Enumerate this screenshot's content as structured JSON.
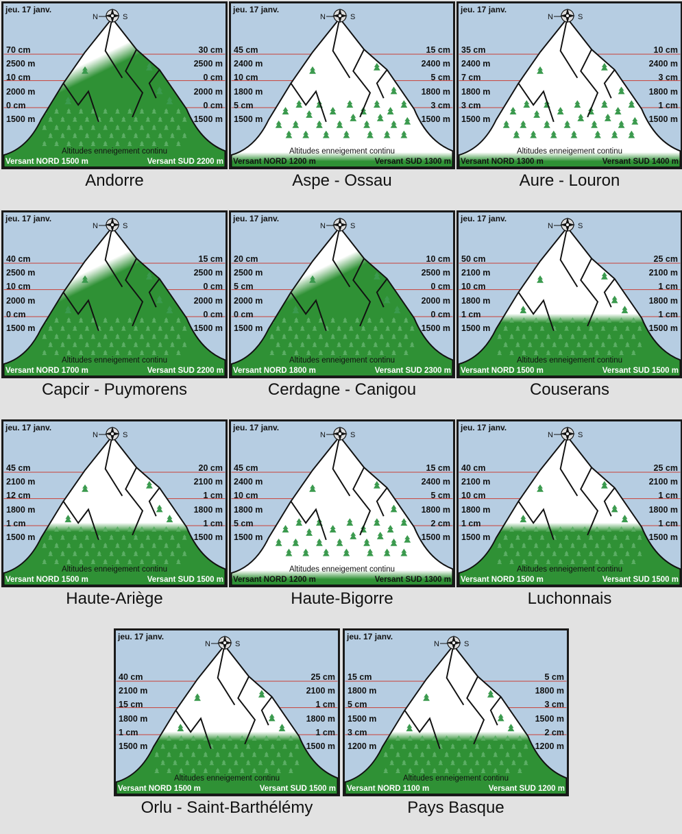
{
  "colors": {
    "sky": "#b6cde2",
    "forest": "#2f9135",
    "snow": "#ffffff",
    "line": "#c8504a",
    "tree": "#3b9a4e"
  },
  "common": {
    "date": "jeu. 17 janv.",
    "compass_n": "N",
    "compass_s": "S",
    "caption": "Altitudes enneigement continu"
  },
  "massifs": [
    {
      "name": "Andorre",
      "left": [
        "70 cm",
        "2500 m",
        "10 cm",
        "2000 m",
        "0 cm",
        "1500 m"
      ],
      "right": [
        "30 cm",
        "2500 m",
        "0 cm",
        "2000 m",
        "0 cm",
        "1500 m"
      ],
      "nord": "Versant NORD 1500 m",
      "sud": "Versant SUD 2200 m",
      "snow": "diag"
    },
    {
      "name": "Aspe - Ossau",
      "left": [
        "45 cm",
        "2400 m",
        "10 cm",
        "1800 m",
        "5 cm",
        "1500 m"
      ],
      "right": [
        "15 cm",
        "2400 m",
        "5 cm",
        "1800 m",
        "3 cm",
        "1500 m"
      ],
      "nord": "Versant NORD 1200 m",
      "sud": "Versant SUD 1300 m",
      "snow": "full"
    },
    {
      "name": "Aure - Louron",
      "left": [
        "35 cm",
        "2400 m",
        "7 cm",
        "1800 m",
        "3 cm",
        "1500 m"
      ],
      "right": [
        "10 cm",
        "2400 m",
        "3 cm",
        "1800 m",
        "1 cm",
        "1500 m"
      ],
      "nord": "Versant NORD 1300 m",
      "sud": "Versant SUD 1400 m",
      "snow": "full"
    },
    {
      "name": "Capcir - Puymorens",
      "left": [
        "40 cm",
        "2500 m",
        "10 cm",
        "2000 m",
        "0 cm",
        "1500 m"
      ],
      "right": [
        "15 cm",
        "2500 m",
        "0 cm",
        "2000 m",
        "0 cm",
        "1500 m"
      ],
      "nord": "Versant NORD 1700 m",
      "sud": "Versant SUD 2200 m",
      "snow": "diag"
    },
    {
      "name": "Cerdagne - Canigou",
      "left": [
        "20 cm",
        "2500 m",
        "5 cm",
        "2000 m",
        "0 cm",
        "1500 m"
      ],
      "right": [
        "10 cm",
        "2500 m",
        "0 cm",
        "2000 m",
        "0 cm",
        "1500 m"
      ],
      "nord": "Versant NORD 1800 m",
      "sud": "Versant SUD 2300 m",
      "snow": "diag"
    },
    {
      "name": "Couserans",
      "left": [
        "50 cm",
        "2100 m",
        "10 cm",
        "1800 m",
        "1 cm",
        "1500 m"
      ],
      "right": [
        "25 cm",
        "2100 m",
        "1 cm",
        "1800 m",
        "1 cm",
        "1500 m"
      ],
      "nord": "Versant NORD 1500 m",
      "sud": "Versant SUD 1500 m",
      "snow": "flat"
    },
    {
      "name": "Haute-Ariège",
      "left": [
        "45 cm",
        "2100 m",
        "12 cm",
        "1800 m",
        "1 cm",
        "1500 m"
      ],
      "right": [
        "20 cm",
        "2100 m",
        "1 cm",
        "1800 m",
        "1 cm",
        "1500 m"
      ],
      "nord": "Versant NORD 1500 m",
      "sud": "Versant SUD 1500 m",
      "snow": "flat"
    },
    {
      "name": "Haute-Bigorre",
      "left": [
        "45 cm",
        "2400 m",
        "10 cm",
        "1800 m",
        "5 cm",
        "1500 m"
      ],
      "right": [
        "15 cm",
        "2400 m",
        "5 cm",
        "1800 m",
        "2 cm",
        "1500 m"
      ],
      "nord": "Versant NORD 1200 m",
      "sud": "Versant SUD 1300 m",
      "snow": "full"
    },
    {
      "name": "Luchonnais",
      "left": [
        "40 cm",
        "2100 m",
        "10 cm",
        "1800 m",
        "1 cm",
        "1500 m"
      ],
      "right": [
        "25 cm",
        "2100 m",
        "1 cm",
        "1800 m",
        "1 cm",
        "1500 m"
      ],
      "nord": "Versant NORD 1500 m",
      "sud": "Versant SUD 1500 m",
      "snow": "flat"
    },
    {
      "name": "Orlu - Saint-Barthélémy",
      "left": [
        "40 cm",
        "2100 m",
        "15 cm",
        "1800 m",
        "1 cm",
        "1500 m"
      ],
      "right": [
        "25 cm",
        "2100 m",
        "1 cm",
        "1800 m",
        "1 cm",
        "1500 m"
      ],
      "nord": "Versant NORD 1500 m",
      "sud": "Versant SUD 1500 m",
      "snow": "flat"
    },
    {
      "name": "Pays Basque",
      "left": [
        "15 cm",
        "1800 m",
        "5 cm",
        "1500 m",
        "3 cm",
        "1200 m"
      ],
      "right": [
        "5 cm",
        "1800 m",
        "3 cm",
        "1500 m",
        "2 cm",
        "1200 m"
      ],
      "nord": "Versant NORD 1100 m",
      "sud": "Versant SUD 1200 m",
      "snow": "flat"
    }
  ]
}
